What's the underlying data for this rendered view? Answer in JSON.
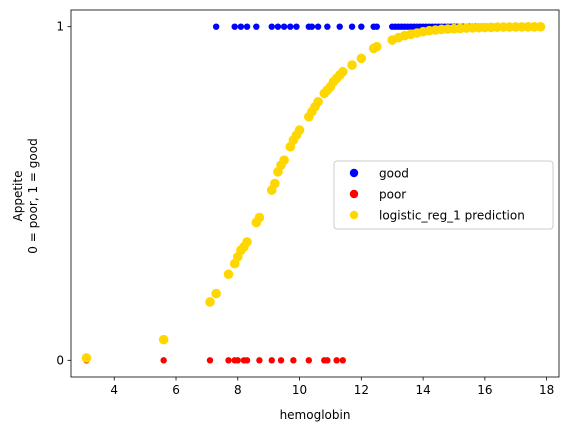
{
  "chart_data": {
    "type": "scatter",
    "title": "",
    "xlabel": "hemoglobin",
    "ylabel_lines": [
      "Appetite",
      "0 = poor, 1 = good"
    ],
    "xlim": [
      2.6,
      18.4
    ],
    "ylim": [
      -0.05,
      1.05
    ],
    "xticks": [
      4,
      6,
      8,
      10,
      12,
      14,
      16,
      18
    ],
    "yticks": [
      0,
      1
    ],
    "grid": false,
    "legend_placement": "center-right",
    "series": [
      {
        "name": "good",
        "color": "#0000ff",
        "x": [
          7.3,
          7.9,
          8.1,
          8.3,
          8.6,
          9.1,
          9.3,
          9.5,
          9.7,
          9.9,
          10.3,
          10.4,
          10.6,
          10.9,
          11.3,
          11.7,
          12.0,
          12.4,
          12.5,
          13.0,
          13.1,
          13.2,
          13.3,
          13.4,
          13.5,
          13.6,
          13.7,
          13.8,
          13.9,
          14.0,
          14.1,
          14.2,
          14.3,
          14.4,
          14.5,
          14.6,
          14.7,
          14.8,
          14.9,
          15.0,
          15.1,
          15.2,
          15.3,
          15.4,
          15.5,
          15.6,
          15.7,
          15.8,
          15.9,
          16.0,
          16.1,
          16.2,
          16.3,
          16.4,
          16.5,
          16.6,
          16.7,
          16.8,
          16.9,
          17.0,
          17.2,
          17.4,
          17.6,
          17.8
        ],
        "y": [
          1,
          1,
          1,
          1,
          1,
          1,
          1,
          1,
          1,
          1,
          1,
          1,
          1,
          1,
          1,
          1,
          1,
          1,
          1,
          1,
          1,
          1,
          1,
          1,
          1,
          1,
          1,
          1,
          1,
          1,
          1,
          1,
          1,
          1,
          1,
          1,
          1,
          1,
          1,
          1,
          1,
          1,
          1,
          1,
          1,
          1,
          1,
          1,
          1,
          1,
          1,
          1,
          1,
          1,
          1,
          1,
          1,
          1,
          1,
          1,
          1,
          1,
          1,
          1
        ]
      },
      {
        "name": "poor",
        "color": "#ff0000",
        "x": [
          3.1,
          5.6,
          7.1,
          7.7,
          7.9,
          8.0,
          8.2,
          8.3,
          8.7,
          9.1,
          9.4,
          9.8,
          10.3,
          10.8,
          10.9,
          11.2,
          11.4
        ],
        "y": [
          0,
          0,
          0,
          0,
          0,
          0,
          0,
          0,
          0,
          0,
          0,
          0,
          0,
          0,
          0,
          0,
          0
        ]
      },
      {
        "name": "logistic_reg_1 prediction",
        "color": "#ffd700",
        "x": [
          3.1,
          5.6,
          7.1,
          7.3,
          7.7,
          7.9,
          8.0,
          8.1,
          8.2,
          8.3,
          8.6,
          8.7,
          9.1,
          9.2,
          9.3,
          9.4,
          9.5,
          9.7,
          9.8,
          9.9,
          10.0,
          10.3,
          10.4,
          10.5,
          10.6,
          10.8,
          10.9,
          11.0,
          11.1,
          11.2,
          11.3,
          11.4,
          11.7,
          12.0,
          12.4,
          12.5,
          13.0,
          13.2,
          13.4,
          13.6,
          13.8,
          14.0,
          14.2,
          14.4,
          14.6,
          14.8,
          15.0,
          15.2,
          15.4,
          15.6,
          15.8,
          16.0,
          16.2,
          16.4,
          16.6,
          16.8,
          17.0,
          17.2,
          17.4,
          17.6,
          17.8
        ],
        "y": [
          0.007,
          0.062,
          0.175,
          0.2,
          0.258,
          0.29,
          0.31,
          0.33,
          0.34,
          0.355,
          0.413,
          0.428,
          0.51,
          0.53,
          0.565,
          0.585,
          0.6,
          0.64,
          0.66,
          0.675,
          0.69,
          0.73,
          0.745,
          0.76,
          0.775,
          0.8,
          0.81,
          0.82,
          0.835,
          0.845,
          0.855,
          0.865,
          0.885,
          0.905,
          0.935,
          0.94,
          0.96,
          0.967,
          0.973,
          0.977,
          0.981,
          0.985,
          0.988,
          0.99,
          0.992,
          0.993,
          0.994,
          0.995,
          0.996,
          0.9965,
          0.997,
          0.9975,
          0.998,
          0.9985,
          0.9988,
          0.999,
          0.9992,
          0.9994,
          0.9995,
          0.9996,
          0.9997
        ]
      }
    ]
  }
}
